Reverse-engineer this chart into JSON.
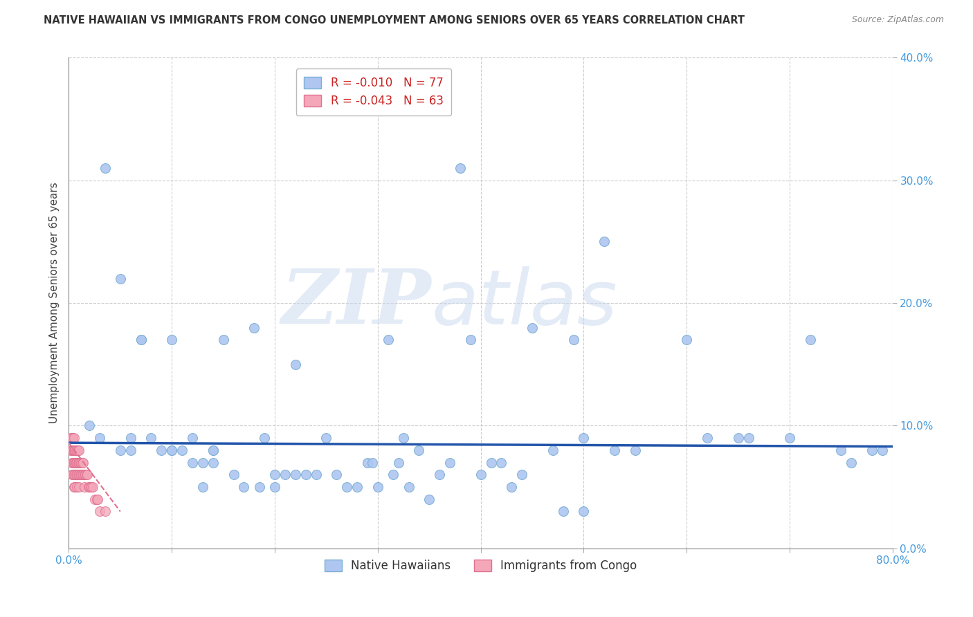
{
  "title": "NATIVE HAWAIIAN VS IMMIGRANTS FROM CONGO UNEMPLOYMENT AMONG SENIORS OVER 65 YEARS CORRELATION CHART",
  "source": "Source: ZipAtlas.com",
  "ylabel": "Unemployment Among Seniors over 65 years",
  "xlim": [
    0.0,
    0.8
  ],
  "ylim": [
    0.0,
    0.4
  ],
  "xticks": [
    0.0,
    0.1,
    0.2,
    0.3,
    0.4,
    0.5,
    0.6,
    0.7,
    0.8
  ],
  "xticklabels_ends": [
    "0.0%",
    "80.0%"
  ],
  "yticks": [
    0.0,
    0.1,
    0.2,
    0.3,
    0.4
  ],
  "yticklabels": [
    "0.0%",
    "10.0%",
    "20.0%",
    "30.0%",
    "40.0%"
  ],
  "blue_scatter_x": [
    0.02,
    0.03,
    0.035,
    0.05,
    0.05,
    0.06,
    0.06,
    0.07,
    0.07,
    0.08,
    0.09,
    0.1,
    0.1,
    0.1,
    0.11,
    0.12,
    0.12,
    0.13,
    0.13,
    0.14,
    0.14,
    0.14,
    0.15,
    0.16,
    0.17,
    0.18,
    0.185,
    0.19,
    0.2,
    0.2,
    0.21,
    0.22,
    0.22,
    0.23,
    0.24,
    0.25,
    0.26,
    0.27,
    0.28,
    0.29,
    0.295,
    0.3,
    0.31,
    0.315,
    0.32,
    0.325,
    0.33,
    0.34,
    0.35,
    0.36,
    0.37,
    0.38,
    0.39,
    0.4,
    0.41,
    0.42,
    0.43,
    0.44,
    0.45,
    0.47,
    0.48,
    0.49,
    0.5,
    0.5,
    0.52,
    0.53,
    0.55,
    0.6,
    0.62,
    0.65,
    0.66,
    0.7,
    0.72,
    0.75,
    0.76,
    0.78,
    0.79
  ],
  "blue_scatter_y": [
    0.1,
    0.09,
    0.31,
    0.22,
    0.08,
    0.08,
    0.09,
    0.17,
    0.17,
    0.09,
    0.08,
    0.17,
    0.08,
    0.08,
    0.08,
    0.07,
    0.09,
    0.05,
    0.07,
    0.08,
    0.08,
    0.07,
    0.17,
    0.06,
    0.05,
    0.18,
    0.05,
    0.09,
    0.05,
    0.06,
    0.06,
    0.06,
    0.15,
    0.06,
    0.06,
    0.09,
    0.06,
    0.05,
    0.05,
    0.07,
    0.07,
    0.05,
    0.17,
    0.06,
    0.07,
    0.09,
    0.05,
    0.08,
    0.04,
    0.06,
    0.07,
    0.31,
    0.17,
    0.06,
    0.07,
    0.07,
    0.05,
    0.06,
    0.18,
    0.08,
    0.03,
    0.17,
    0.03,
    0.09,
    0.25,
    0.08,
    0.08,
    0.17,
    0.09,
    0.09,
    0.09,
    0.09,
    0.17,
    0.08,
    0.07,
    0.08,
    0.08
  ],
  "pink_scatter_x": [
    0.002,
    0.002,
    0.003,
    0.003,
    0.003,
    0.003,
    0.003,
    0.004,
    0.004,
    0.004,
    0.004,
    0.004,
    0.005,
    0.005,
    0.005,
    0.005,
    0.005,
    0.005,
    0.005,
    0.006,
    0.006,
    0.006,
    0.006,
    0.006,
    0.007,
    0.007,
    0.007,
    0.007,
    0.008,
    0.008,
    0.008,
    0.008,
    0.009,
    0.009,
    0.009,
    0.01,
    0.01,
    0.01,
    0.01,
    0.01,
    0.011,
    0.011,
    0.012,
    0.012,
    0.013,
    0.013,
    0.014,
    0.014,
    0.015,
    0.015,
    0.016,
    0.017,
    0.018,
    0.019,
    0.02,
    0.021,
    0.022,
    0.023,
    0.025,
    0.027,
    0.028,
    0.03,
    0.035
  ],
  "pink_scatter_y": [
    0.09,
    0.08,
    0.09,
    0.08,
    0.08,
    0.07,
    0.06,
    0.09,
    0.08,
    0.08,
    0.07,
    0.06,
    0.09,
    0.08,
    0.08,
    0.07,
    0.07,
    0.06,
    0.05,
    0.08,
    0.08,
    0.07,
    0.06,
    0.05,
    0.08,
    0.07,
    0.07,
    0.06,
    0.08,
    0.07,
    0.06,
    0.05,
    0.08,
    0.07,
    0.06,
    0.08,
    0.07,
    0.07,
    0.06,
    0.05,
    0.07,
    0.06,
    0.07,
    0.06,
    0.07,
    0.06,
    0.07,
    0.06,
    0.06,
    0.05,
    0.06,
    0.06,
    0.06,
    0.05,
    0.05,
    0.05,
    0.05,
    0.05,
    0.04,
    0.04,
    0.04,
    0.03,
    0.03
  ],
  "blue_trend_x": [
    0.0,
    0.8
  ],
  "blue_trend_y": [
    0.086,
    0.083
  ],
  "pink_trend_x": [
    0.0,
    0.05
  ],
  "pink_trend_y": [
    0.086,
    0.03
  ],
  "dot_size": 100,
  "blue_color": "#aec6f0",
  "blue_edge_color": "#7bafd4",
  "pink_color": "#f4a7b9",
  "pink_edge_color": "#e07090",
  "blue_line_color": "#2255aa",
  "pink_line_color": "#e07090",
  "watermark_zip": "ZIP",
  "watermark_atlas": "atlas",
  "background_color": "#ffffff",
  "grid_color": "#cccccc",
  "title_color": "#333333",
  "axis_color": "#4499dd",
  "tick_color": "#4499dd"
}
